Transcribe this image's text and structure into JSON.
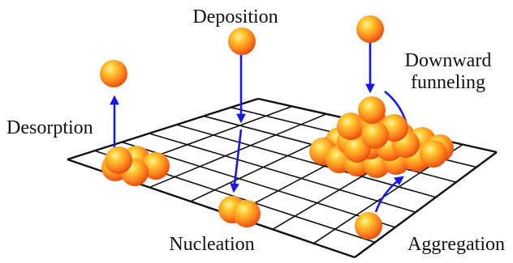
{
  "labels": {
    "deposition": "Deposition",
    "desorption": "Desorption",
    "downward_1": "Downward",
    "downward_2": "funneling",
    "nucleation": "Nucleation",
    "aggregation": "Aggregation"
  },
  "colors": {
    "grid": "#111111",
    "arrow": "#1919e6",
    "sphere_light": "#ffd24a",
    "sphere_mid": "#ff8a1f",
    "sphere_dark": "#e8460a"
  }
}
